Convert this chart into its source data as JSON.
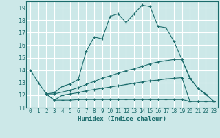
{
  "xlabel": "Humidex (Indice chaleur)",
  "bg_color": "#cce8e8",
  "grid_color": "#ffffff",
  "line_color": "#1a6b6b",
  "xlim": [
    -0.5,
    23.5
  ],
  "ylim": [
    11,
    19.5
  ],
  "xticks": [
    0,
    1,
    2,
    3,
    4,
    5,
    6,
    7,
    8,
    9,
    10,
    11,
    12,
    13,
    14,
    15,
    16,
    17,
    18,
    19,
    20,
    21,
    22,
    23
  ],
  "yticks": [
    11,
    12,
    13,
    14,
    15,
    16,
    17,
    18,
    19
  ],
  "series": [
    {
      "x": [
        0,
        1,
        2,
        3,
        4,
        5,
        6,
        7,
        8,
        9,
        10,
        11,
        12,
        13,
        14,
        15,
        16,
        17,
        18,
        19,
        20,
        21,
        22,
        23
      ],
      "y": [
        14.0,
        13.0,
        12.1,
        12.2,
        12.7,
        12.9,
        13.25,
        15.5,
        16.65,
        16.5,
        18.3,
        18.5,
        17.8,
        18.5,
        19.2,
        19.1,
        17.5,
        17.4,
        16.3,
        14.85,
        13.35,
        12.55,
        12.1,
        11.5
      ]
    },
    {
      "x": [
        2,
        3,
        4,
        5,
        6,
        7,
        8,
        9,
        10,
        11,
        12,
        13,
        14,
        15,
        16,
        17,
        18,
        19,
        20,
        21,
        22,
        23
      ],
      "y": [
        12.1,
        12.1,
        12.25,
        12.4,
        12.6,
        12.85,
        13.1,
        13.35,
        13.55,
        13.75,
        13.95,
        14.1,
        14.3,
        14.5,
        14.65,
        14.75,
        14.85,
        14.85,
        13.4,
        12.55,
        12.05,
        11.5
      ]
    },
    {
      "x": [
        2,
        3,
        4,
        5,
        6,
        7,
        8,
        9,
        10,
        11,
        12,
        13,
        14,
        15,
        16,
        17,
        18,
        19,
        20,
        21,
        22,
        23
      ],
      "y": [
        12.1,
        11.6,
        12.0,
        12.1,
        12.2,
        12.35,
        12.45,
        12.55,
        12.65,
        12.75,
        12.85,
        12.95,
        13.05,
        13.15,
        13.2,
        13.3,
        13.35,
        13.4,
        11.5,
        11.5,
        11.5,
        11.5
      ]
    },
    {
      "x": [
        2,
        3,
        4,
        5,
        6,
        7,
        8,
        9,
        10,
        11,
        12,
        13,
        14,
        15,
        16,
        17,
        18,
        19,
        20,
        21,
        22,
        23
      ],
      "y": [
        12.1,
        11.6,
        11.6,
        11.6,
        11.65,
        11.65,
        11.65,
        11.65,
        11.65,
        11.65,
        11.65,
        11.65,
        11.65,
        11.65,
        11.65,
        11.65,
        11.65,
        11.65,
        11.5,
        11.5,
        11.5,
        11.5
      ]
    }
  ]
}
